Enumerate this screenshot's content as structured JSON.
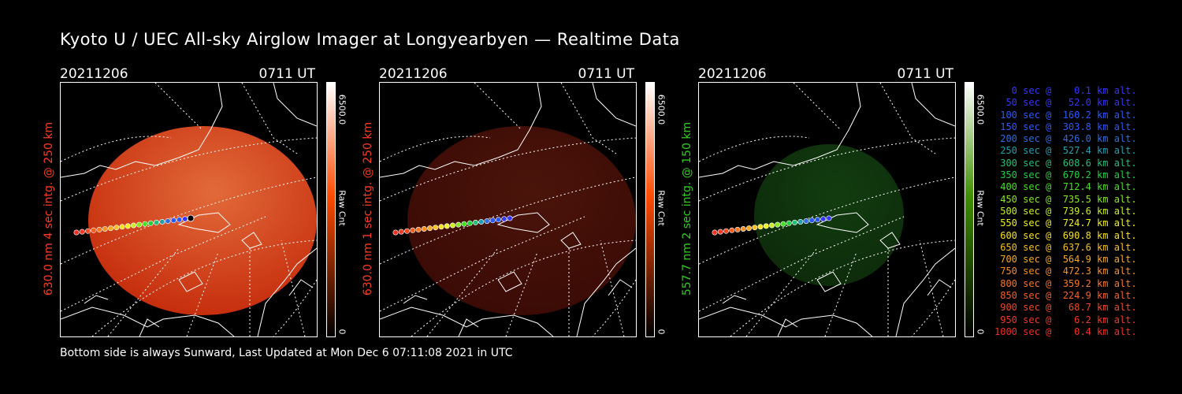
{
  "title": "Kyoto U / UEC All-sky Airglow Imager at Longyearbyen — Realtime Data",
  "footer": "Bottom side is always Sunward, Last Updated at Mon Dec  6 07:11:08 2021 in UTC",
  "panels": [
    {
      "date": "20211206",
      "time": "0711 UT",
      "label": "630.0 nm 4 sec intg. @ 250 km",
      "label_color": "#ff3b1f",
      "cbar_max": "6500.0",
      "cbar_label": "Raw Cnt",
      "cbar_min": "0",
      "cbar_color": "#ff4a00",
      "disk_color": "#c42a0a",
      "disk_opacity": 1.0,
      "disk": "large"
    },
    {
      "date": "20211206",
      "time": "0711 UT",
      "label": "630.0 nm 1 sec intg. @ 250 km",
      "label_color": "#ff3b1f",
      "cbar_max": "6500.0",
      "cbar_label": "Raw Cnt",
      "cbar_min": "0",
      "cbar_color": "#ff4a00",
      "disk_color": "#3a0a05",
      "disk_opacity": 1.0,
      "disk": "large"
    },
    {
      "date": "20211206",
      "time": "0711 UT",
      "label": "557.7 nm 2 sec intg. @ 150 km",
      "label_color": "#33cc22",
      "cbar_max": "6500.0",
      "cbar_label": "Raw Cnt",
      "cbar_min": "0",
      "cbar_color": "#3f8f00",
      "disk_color": "#0d2a0a",
      "disk_opacity": 1.0,
      "disk": "small"
    }
  ],
  "legend": [
    {
      "text": "   0 sec @    0.1 km alt.",
      "color": "#3535ff"
    },
    {
      "text": "  50 sec @   52.0 km alt.",
      "color": "#3535ff"
    },
    {
      "text": " 100 sec @  160.2 km alt.",
      "color": "#2a5aff"
    },
    {
      "text": " 150 sec @  303.8 km alt.",
      "color": "#2a5aff"
    },
    {
      "text": " 200 sec @  426.0 km alt.",
      "color": "#2e6ee0"
    },
    {
      "text": " 250 sec @  527.4 km alt.",
      "color": "#22a0b0"
    },
    {
      "text": " 300 sec @  608.6 km alt.",
      "color": "#22c07a"
    },
    {
      "text": " 350 sec @  670.2 km alt.",
      "color": "#22d040"
    },
    {
      "text": " 400 sec @  712.4 km alt.",
      "color": "#44e022"
    },
    {
      "text": " 450 sec @  735.5 km alt.",
      "color": "#88e822"
    },
    {
      "text": " 500 sec @  739.6 km alt.",
      "color": "#c8f022"
    },
    {
      "text": " 550 sec @  724.7 km alt.",
      "color": "#f0f022"
    },
    {
      "text": " 600 sec @  690.8 km alt.",
      "color": "#f8e022"
    },
    {
      "text": " 650 sec @  637.6 km alt.",
      "color": "#f8c022"
    },
    {
      "text": " 700 sec @  564.9 km alt.",
      "color": "#f8a822"
    },
    {
      "text": " 750 sec @  472.3 km alt.",
      "color": "#f89022"
    },
    {
      "text": " 800 sec @  359.2 km alt.",
      "color": "#f87822"
    },
    {
      "text": " 850 sec @  224.9 km alt.",
      "color": "#f86022"
    },
    {
      "text": " 900 sec @   68.7 km alt.",
      "color": "#f04a22"
    },
    {
      "text": " 950 sec @    6.2 km alt.",
      "color": "#f03a22"
    },
    {
      "text": "1000 sec @    0.4 km alt.",
      "color": "#f03022"
    }
  ]
}
